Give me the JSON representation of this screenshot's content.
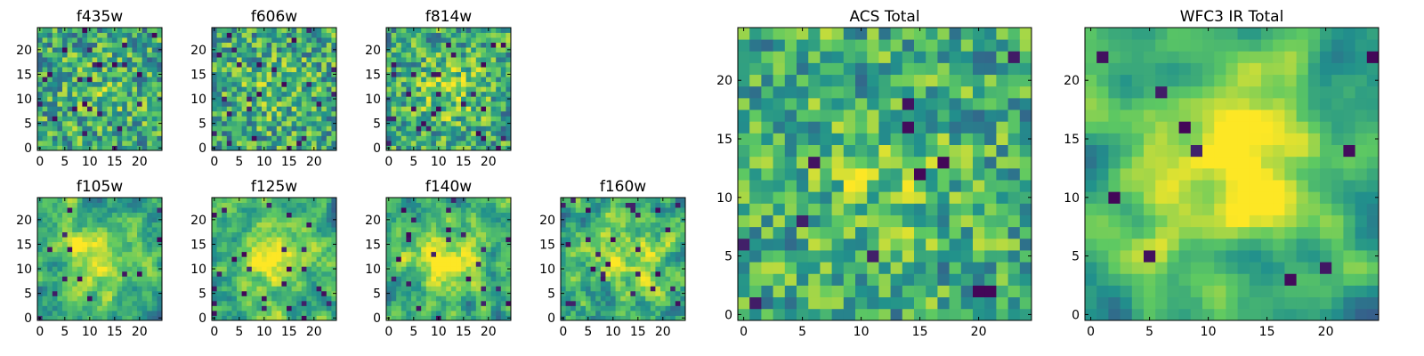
{
  "figure_title": "",
  "colormap": [
    "#440154",
    "#3b528b",
    "#21918c",
    "#5ec962",
    "#fde725"
  ],
  "chart_data": [
    {
      "id": "f435w",
      "type": "heatmap",
      "title": "f435w",
      "grid_size": 25,
      "xticks": [
        0,
        5,
        10,
        15,
        20
      ],
      "yticks": [
        0,
        5,
        10,
        15,
        20
      ],
      "xlim": [
        0,
        24
      ],
      "ylim": [
        0,
        24
      ],
      "seed": 11,
      "smooth": 0.1,
      "center_boost": 0.1,
      "dark_freq": 0.04,
      "dark_level": 0.12
    },
    {
      "id": "f606w",
      "type": "heatmap",
      "title": "f606w",
      "grid_size": 25,
      "xticks": [
        0,
        5,
        10,
        15,
        20
      ],
      "yticks": [
        0,
        5,
        10,
        15,
        20
      ],
      "xlim": [
        0,
        24
      ],
      "ylim": [
        0,
        24
      ],
      "seed": 23,
      "smooth": 0.1,
      "center_boost": 0.1,
      "dark_freq": 0.04,
      "dark_level": 0.12
    },
    {
      "id": "f814w",
      "type": "heatmap",
      "title": "f814w",
      "grid_size": 25,
      "xticks": [
        0,
        5,
        10,
        15,
        20
      ],
      "yticks": [
        0,
        5,
        10,
        15,
        20
      ],
      "xlim": [
        0,
        24
      ],
      "ylim": [
        0,
        24
      ],
      "seed": 37,
      "smooth": 0.15,
      "center_boost": 0.2,
      "dark_freq": 0.04,
      "dark_level": 0.12
    },
    {
      "id": "f105w",
      "type": "heatmap",
      "title": "f105w",
      "grid_size": 25,
      "xticks": [
        0,
        5,
        10,
        15,
        20
      ],
      "yticks": [
        0,
        5,
        10,
        15,
        20
      ],
      "xlim": [
        0,
        24
      ],
      "ylim": [
        0,
        24
      ],
      "seed": 41,
      "smooth": 0.55,
      "center_boost": 0.35,
      "dark_freq": 0.03,
      "dark_level": 0.15
    },
    {
      "id": "f125w",
      "type": "heatmap",
      "title": "f125w",
      "grid_size": 25,
      "xticks": [
        0,
        5,
        10,
        15,
        20
      ],
      "yticks": [
        0,
        5,
        10,
        15,
        20
      ],
      "xlim": [
        0,
        24
      ],
      "ylim": [
        0,
        24
      ],
      "seed": 53,
      "smooth": 0.55,
      "center_boost": 0.35,
      "dark_freq": 0.03,
      "dark_level": 0.15
    },
    {
      "id": "f140w",
      "type": "heatmap",
      "title": "f140w",
      "grid_size": 25,
      "xticks": [
        0,
        5,
        10,
        15,
        20
      ],
      "yticks": [
        0,
        5,
        10,
        15,
        20
      ],
      "xlim": [
        0,
        24
      ],
      "ylim": [
        0,
        24
      ],
      "seed": 67,
      "smooth": 0.55,
      "center_boost": 0.35,
      "dark_freq": 0.03,
      "dark_level": 0.15
    },
    {
      "id": "f160w",
      "type": "heatmap",
      "title": "f160w",
      "grid_size": 25,
      "xticks": [
        0,
        5,
        10,
        15,
        20
      ],
      "yticks": [
        0,
        5,
        10,
        15,
        20
      ],
      "xlim": [
        0,
        24
      ],
      "ylim": [
        0,
        24
      ],
      "seed": 79,
      "smooth": 0.5,
      "center_boost": 0.3,
      "dark_freq": 0.04,
      "dark_level": 0.12
    },
    {
      "id": "acs-total",
      "type": "heatmap",
      "title": "ACS Total",
      "grid_size": 25,
      "xticks": [
        0,
        5,
        10,
        15,
        20
      ],
      "yticks": [
        0,
        5,
        10,
        15,
        20
      ],
      "xlim": [
        0,
        24
      ],
      "ylim": [
        0,
        24
      ],
      "seed": 97,
      "smooth": 0.3,
      "center_boost": 0.15,
      "dark_freq": 0.025,
      "dark_level": 0.1
    },
    {
      "id": "wfc3-ir-total",
      "type": "heatmap",
      "title": "WFC3 IR Total",
      "grid_size": 25,
      "xticks": [
        0,
        5,
        10,
        15,
        20
      ],
      "yticks": [
        0,
        5,
        10,
        15,
        20
      ],
      "xlim": [
        0,
        24
      ],
      "ylim": [
        0,
        24
      ],
      "seed": 131,
      "smooth": 0.65,
      "center_boost": 0.5,
      "dark_freq": 0.02,
      "dark_level": 0.12
    }
  ]
}
